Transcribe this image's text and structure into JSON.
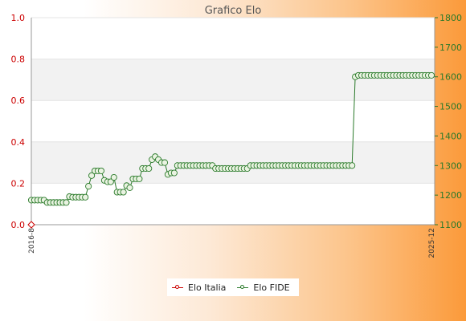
{
  "chart_data": {
    "type": "line",
    "title": "Grafico Elo",
    "left_axis": {
      "ylim": [
        0,
        1
      ],
      "ticks": [
        "0.0",
        "0.2",
        "0.4",
        "0.6",
        "0.8",
        "1.0"
      ],
      "color": "#cc0000"
    },
    "right_axis": {
      "ylim": [
        1100,
        1800
      ],
      "ticks": [
        "1100",
        "1200",
        "1300",
        "1400",
        "1500",
        "1600",
        "1700",
        "1800"
      ],
      "color": "#2a7a2a"
    },
    "grid": "horizontal bands",
    "legend_placement": "bottom",
    "x_first_label": "2016-8",
    "x_last_label": "2025-12",
    "series": [
      {
        "name": "Elo Italia",
        "axis": "left",
        "color": "#cc0000",
        "values": [
          0
        ]
      },
      {
        "name": "Elo FIDE",
        "axis": "right",
        "color": "#2a7a2a",
        "values": [
          1183,
          1183,
          1183,
          1183,
          1183,
          1175,
          1175,
          1175,
          1175,
          1175,
          1175,
          1175,
          1195,
          1193,
          1193,
          1193,
          1193,
          1193,
          1230,
          1266,
          1282,
          1282,
          1282,
          1250,
          1245,
          1245,
          1260,
          1210,
          1210,
          1210,
          1232,
          1225,
          1255,
          1255,
          1255,
          1290,
          1290,
          1290,
          1320,
          1330,
          1320,
          1310,
          1310,
          1270,
          1275,
          1275,
          1300,
          1300,
          1300,
          1300,
          1300,
          1300,
          1300,
          1300,
          1300,
          1300,
          1300,
          1300,
          1290,
          1290,
          1290,
          1290,
          1290,
          1290,
          1290,
          1290,
          1290,
          1290,
          1290,
          1300,
          1300,
          1300,
          1300,
          1300,
          1300,
          1300,
          1300,
          1300,
          1300,
          1300,
          1300,
          1300,
          1300,
          1300,
          1300,
          1300,
          1300,
          1300,
          1300,
          1300,
          1300,
          1300,
          1300,
          1300,
          1300,
          1300,
          1300,
          1300,
          1300,
          1300,
          1300,
          1300,
          1600,
          1605,
          1605,
          1605,
          1605,
          1605,
          1605,
          1605,
          1605,
          1605,
          1605,
          1605,
          1605,
          1605,
          1605,
          1605,
          1605,
          1605,
          1605,
          1605,
          1605,
          1605,
          1605,
          1605,
          1605
        ]
      }
    ]
  }
}
